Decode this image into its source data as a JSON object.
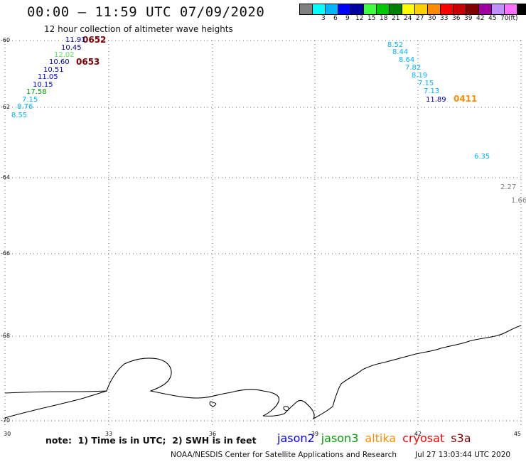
{
  "header": {
    "title": "00:00 – 11:59 UTC 07/09/2020",
    "subtitle": "12 hour collection of altimeter wave heights"
  },
  "color_scale": {
    "unit_label": "(ft)",
    "swatches": [
      {
        "color": "#808080",
        "label": ""
      },
      {
        "color": "#00ffff",
        "label": "3"
      },
      {
        "color": "#00b4ff",
        "label": "6"
      },
      {
        "color": "#0000ff",
        "label": "9"
      },
      {
        "color": "#0000a0",
        "label": "12"
      },
      {
        "color": "#40ff40",
        "label": "15"
      },
      {
        "color": "#00c800",
        "label": "18"
      },
      {
        "color": "#008000",
        "label": "21"
      },
      {
        "color": "#ffff00",
        "label": "24"
      },
      {
        "color": "#ffd000",
        "label": "27"
      },
      {
        "color": "#ff8c00",
        "label": "30"
      },
      {
        "color": "#ff0000",
        "label": "33"
      },
      {
        "color": "#c80000",
        "label": "36"
      },
      {
        "color": "#800000",
        "label": "39"
      },
      {
        "color": "#a000a0",
        "label": "42"
      },
      {
        "color": "#c090ff",
        "label": "45"
      },
      {
        "color": "#ff70ff",
        "label": "70"
      },
      {
        "color": "#000000",
        "label": ""
      }
    ]
  },
  "map": {
    "lat_labels": [
      "-60",
      "-62",
      "-64",
      "-66",
      "-68",
      "-70"
    ],
    "lon_labels": [
      "30",
      "33",
      "36",
      "39",
      "42",
      "45"
    ],
    "times": [
      {
        "text": "0652",
        "color": "#800000"
      },
      {
        "text": "0653",
        "color": "#800000"
      },
      {
        "text": "0411",
        "color": "#ff8c00"
      }
    ],
    "observations": [
      {
        "text": "11.91",
        "color": "#0000a0"
      },
      {
        "text": "10.45",
        "color": "#0000a0"
      },
      {
        "text": "12.02",
        "color": "#60e060"
      },
      {
        "text": "10.60",
        "color": "#0000a0"
      },
      {
        "text": "10.51",
        "color": "#0000a0"
      },
      {
        "text": "11.05",
        "color": "#0000ff"
      },
      {
        "text": "10.15",
        "color": "#0000ff"
      },
      {
        "text": "17.58",
        "color": "#00a000"
      },
      {
        "text": "7.15",
        "color": "#00b4ff"
      },
      {
        "text": "8.76",
        "color": "#00b4ff"
      },
      {
        "text": "8.55",
        "color": "#00b4ff"
      },
      {
        "text": "8.52",
        "color": "#00b4ff"
      },
      {
        "text": "8.44",
        "color": "#00b4ff"
      },
      {
        "text": "8.64",
        "color": "#00b4ff"
      },
      {
        "text": "7.82",
        "color": "#00b4ff"
      },
      {
        "text": "8.19",
        "color": "#00b4ff"
      },
      {
        "text": "7.15",
        "color": "#00b4ff"
      },
      {
        "text": "7.13",
        "color": "#00b4ff"
      },
      {
        "text": "11.89",
        "color": "#0000a0"
      },
      {
        "text": "6.35",
        "color": "#00b4ff"
      },
      {
        "text": "2.27",
        "color": "#808080"
      },
      {
        "text": "1.66",
        "color": "#808080"
      }
    ]
  },
  "footer": {
    "note": "note:  1) Time is in UTC;  2) SWH is in feet",
    "missions": [
      {
        "name": "jason2",
        "color": "#0000ff"
      },
      {
        "name": "jason3",
        "color": "#00a000"
      },
      {
        "name": "altika",
        "color": "#ff8c00"
      },
      {
        "name": "cryosat",
        "color": "#ff0000"
      },
      {
        "name": "s3a",
        "color": "#800000"
      }
    ],
    "org": "NOAA/NESDIS Center for Satellite Applications and Research",
    "timestamp": "Jul 27 13:03:44 UTC 2020"
  }
}
